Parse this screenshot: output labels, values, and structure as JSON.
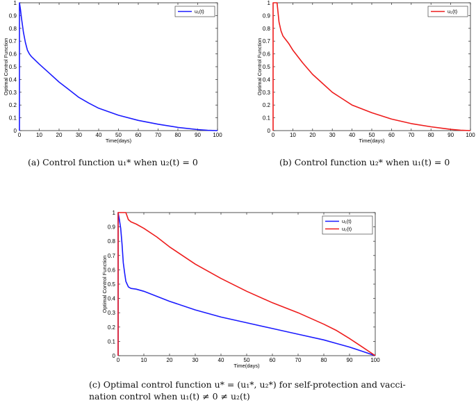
{
  "captions": {
    "a": "(a) Control function u₁* when u₂(t) = 0",
    "b": "(b) Control function u₂* when u₁(t) = 0",
    "c_line1": "(c) Optimal control function u* = (u₁*, u₂*) for self-protection and vacci-",
    "c_line2": "nation control when u₁(t) ≠ 0 ≠ u₂(t)"
  },
  "colors": {
    "u1": "#1a1aff",
    "u2": "#ee1c1c"
  },
  "chart_data": [
    {
      "id": "a",
      "type": "line",
      "xlabel": "Time(days)",
      "ylabel": "Optimal Control Function",
      "xlim": [
        0,
        100
      ],
      "ylim": [
        0,
        1
      ],
      "xticks": [
        0,
        10,
        20,
        30,
        40,
        50,
        60,
        70,
        80,
        90,
        100
      ],
      "yticks": [
        0,
        0.1,
        0.2,
        0.3,
        0.4,
        0.5,
        0.6,
        0.7,
        0.8,
        0.9,
        1
      ],
      "legend_position": "top-right",
      "grid": false,
      "series": [
        {
          "name": "u₁(t)",
          "color": "u1",
          "x": [
            0,
            0,
            0.5,
            1,
            2,
            3,
            4,
            5,
            6,
            8,
            10,
            15,
            20,
            25,
            30,
            35,
            40,
            50,
            60,
            70,
            80,
            90,
            95,
            100
          ],
          "y": [
            0,
            1,
            0.95,
            0.88,
            0.77,
            0.69,
            0.63,
            0.6,
            0.58,
            0.55,
            0.52,
            0.45,
            0.38,
            0.32,
            0.26,
            0.215,
            0.175,
            0.12,
            0.08,
            0.05,
            0.025,
            0.008,
            0.002,
            0
          ]
        }
      ]
    },
    {
      "id": "b",
      "type": "line",
      "xlabel": "Time(days)",
      "ylabel": "Optimal Control Function",
      "xlim": [
        0,
        100
      ],
      "ylim": [
        0,
        1
      ],
      "xticks": [
        0,
        10,
        20,
        30,
        40,
        50,
        60,
        70,
        80,
        90,
        100
      ],
      "yticks": [
        0,
        0.1,
        0.2,
        0.3,
        0.4,
        0.5,
        0.6,
        0.7,
        0.8,
        0.9,
        1
      ],
      "legend_position": "top-right",
      "grid": false,
      "series": [
        {
          "name": "u₂(t)",
          "color": "u2",
          "x": [
            0,
            0,
            1,
            2,
            3,
            4,
            5,
            6,
            8,
            10,
            15,
            20,
            25,
            30,
            35,
            40,
            50,
            60,
            70,
            80,
            90,
            95,
            100
          ],
          "y": [
            0,
            1,
            1,
            1,
            0.85,
            0.78,
            0.74,
            0.72,
            0.68,
            0.63,
            0.53,
            0.44,
            0.37,
            0.3,
            0.25,
            0.2,
            0.14,
            0.09,
            0.055,
            0.03,
            0.01,
            0.003,
            0
          ]
        }
      ]
    },
    {
      "id": "c",
      "type": "line",
      "xlabel": "Time(days)",
      "ylabel": "Optimal Control Function",
      "xlim": [
        0,
        100
      ],
      "ylim": [
        0,
        1
      ],
      "xticks": [
        0,
        10,
        20,
        30,
        40,
        50,
        60,
        70,
        80,
        90,
        100
      ],
      "yticks": [
        0,
        0.1,
        0.2,
        0.3,
        0.4,
        0.5,
        0.6,
        0.7,
        0.8,
        0.9,
        1
      ],
      "legend_position": "top-right",
      "grid": false,
      "series": [
        {
          "name": "u₁(t)",
          "color": "u1",
          "x": [
            0,
            0,
            0.5,
            1,
            1.5,
            2,
            2.5,
            3,
            3.5,
            4,
            5,
            7,
            10,
            15,
            20,
            30,
            40,
            50,
            60,
            70,
            80,
            85,
            90,
            95,
            100
          ],
          "y": [
            0,
            1,
            0.95,
            0.89,
            0.78,
            0.65,
            0.58,
            0.52,
            0.5,
            0.48,
            0.47,
            0.465,
            0.45,
            0.415,
            0.38,
            0.32,
            0.27,
            0.23,
            0.19,
            0.15,
            0.11,
            0.085,
            0.06,
            0.03,
            0
          ]
        },
        {
          "name": "u₂(t)",
          "color": "u2",
          "x": [
            0,
            0,
            1,
            2,
            3,
            4,
            5,
            7,
            10,
            15,
            20,
            30,
            40,
            50,
            60,
            70,
            80,
            85,
            90,
            95,
            100
          ],
          "y": [
            0,
            1,
            1,
            1,
            1,
            0.95,
            0.935,
            0.92,
            0.89,
            0.83,
            0.76,
            0.64,
            0.54,
            0.45,
            0.37,
            0.3,
            0.22,
            0.175,
            0.12,
            0.06,
            0
          ]
        }
      ]
    }
  ]
}
